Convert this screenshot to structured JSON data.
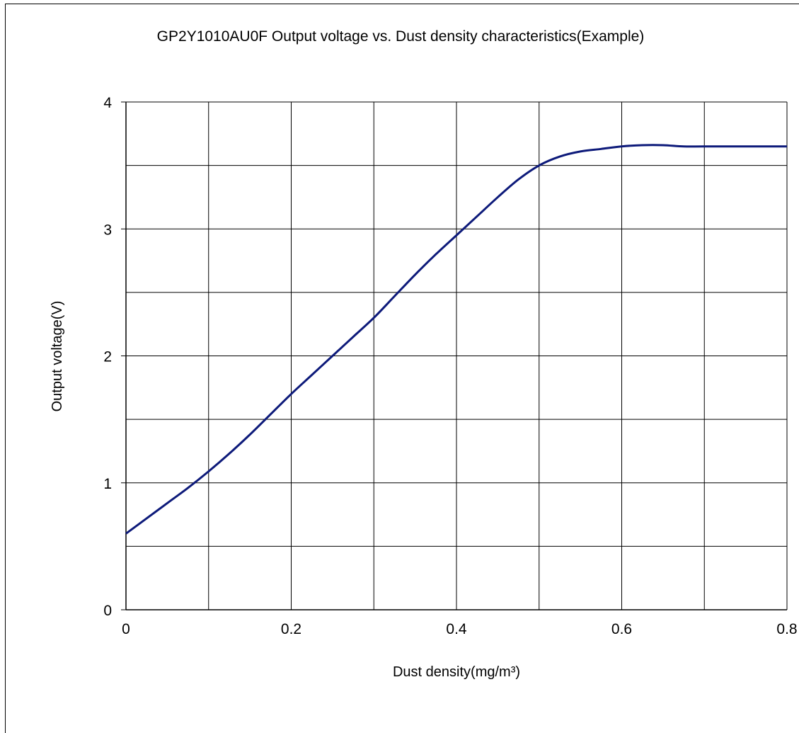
{
  "chart_data": {
    "type": "line",
    "title": "GP2Y1010AU0F Output voltage vs. Dust density characteristics(Example)",
    "xlabel": "Dust density(mg/m³)",
    "ylabel": "Output voltage(V)",
    "xlim": [
      0,
      0.8
    ],
    "ylim": [
      0,
      4
    ],
    "x_ticks": [
      "0",
      "0.2",
      "0.4",
      "0.6",
      "0.8"
    ],
    "y_ticks": [
      "0",
      "1",
      "2",
      "3",
      "4"
    ],
    "x_tick_values": [
      0,
      0.2,
      0.4,
      0.6,
      0.8
    ],
    "y_tick_values": [
      0,
      1,
      2,
      3,
      4
    ],
    "x_grid_step": 0.1,
    "y_grid_step": 0.5,
    "grid": true,
    "legend": "none",
    "line_color": "#0d1a7a",
    "series": [
      {
        "x": [
          0,
          0.025,
          0.05,
          0.075,
          0.1,
          0.125,
          0.15,
          0.175,
          0.2,
          0.225,
          0.25,
          0.275,
          0.3,
          0.325,
          0.35,
          0.375,
          0.4,
          0.425,
          0.45,
          0.475,
          0.5,
          0.525,
          0.55,
          0.575,
          0.6,
          0.625,
          0.65,
          0.675,
          0.7,
          0.75,
          0.8
        ],
        "y": [
          0.6,
          0.72,
          0.84,
          0.96,
          1.09,
          1.23,
          1.38,
          1.54,
          1.7,
          1.85,
          2.0,
          2.15,
          2.3,
          2.47,
          2.64,
          2.8,
          2.95,
          3.1,
          3.25,
          3.39,
          3.5,
          3.57,
          3.61,
          3.63,
          3.65,
          3.66,
          3.66,
          3.65,
          3.65,
          3.65,
          3.65
        ]
      }
    ]
  }
}
